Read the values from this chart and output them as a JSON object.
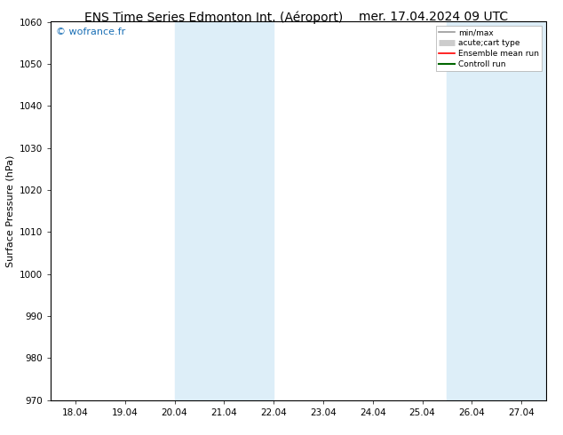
{
  "title_left": "ENS Time Series Edmonton Int. (Aéroport)",
  "title_right": "mer. 17.04.2024 09 UTC",
  "ylabel": "Surface Pressure (hPa)",
  "ylim": [
    970,
    1060
  ],
  "yticks": [
    970,
    980,
    990,
    1000,
    1010,
    1020,
    1030,
    1040,
    1050,
    1060
  ],
  "x_labels": [
    "18.04",
    "19.04",
    "20.04",
    "21.04",
    "22.04",
    "23.04",
    "24.04",
    "25.04",
    "26.04",
    "27.04"
  ],
  "x_values": [
    0,
    1,
    2,
    3,
    4,
    5,
    6,
    7,
    8,
    9
  ],
  "shaded_bands": [
    {
      "xmin": 2.0,
      "xmax": 3.0
    },
    {
      "xmin": 3.0,
      "xmax": 4.0
    },
    {
      "xmin": 7.5,
      "xmax": 8.5
    },
    {
      "xmin": 8.5,
      "xmax": 9.5
    }
  ],
  "shade_color": "#ddeef8",
  "watermark": "© wofrance.fr",
  "watermark_color": "#1a6fb5",
  "legend_entries": [
    {
      "label": "min/max",
      "color": "#999999",
      "lw": 1.2
    },
    {
      "label": "acute;cart type",
      "color": "#cccccc",
      "lw": 5
    },
    {
      "label": "Ensemble mean run",
      "color": "#ff0000",
      "lw": 1.2
    },
    {
      "label": "Controll run",
      "color": "#006600",
      "lw": 1.5
    }
  ],
  "bg_color": "#ffffff",
  "plot_bg_color": "#ffffff",
  "title_fontsize": 10,
  "axis_label_fontsize": 8,
  "tick_fontsize": 7.5
}
